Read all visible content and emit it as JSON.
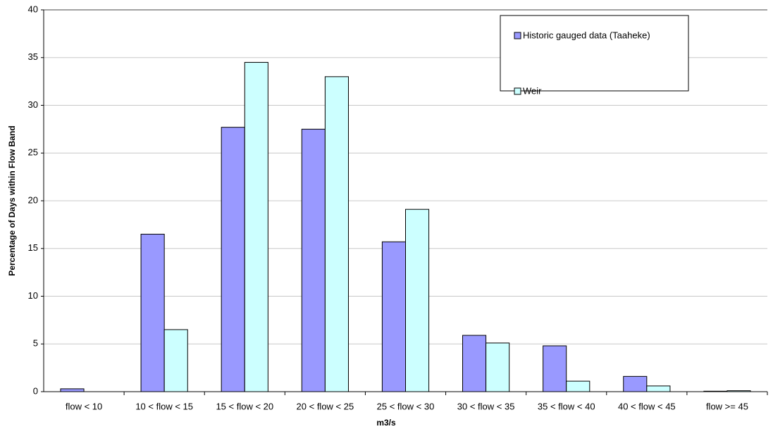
{
  "chart_data": {
    "type": "bar",
    "y_label": "Percentage of Days within Flow Band",
    "x_label": "m3/s",
    "categories": [
      "flow < 10",
      "10 < flow < 15",
      "15 < flow < 20",
      "20 < flow < 25",
      "25 < flow < 30",
      "30 < flow < 35",
      "35 < flow < 40",
      "40 < flow < 45",
      "flow >= 45"
    ],
    "series": [
      {
        "name": "Historic gauged data (Taaheke)",
        "color": "#9999ff",
        "values": [
          0.3,
          16.5,
          27.7,
          27.5,
          15.7,
          5.9,
          4.8,
          1.6,
          0.05
        ]
      },
      {
        "name": "Weir",
        "color": "#ccffff",
        "values": [
          0,
          6.5,
          34.5,
          33.0,
          19.1,
          5.1,
          1.1,
          0.6,
          0.1
        ]
      }
    ],
    "ylim": [
      0,
      40
    ],
    "yticks": [
      0,
      5,
      10,
      15,
      20,
      25,
      30,
      35,
      40
    ],
    "grid": true,
    "legend": "top-right"
  }
}
